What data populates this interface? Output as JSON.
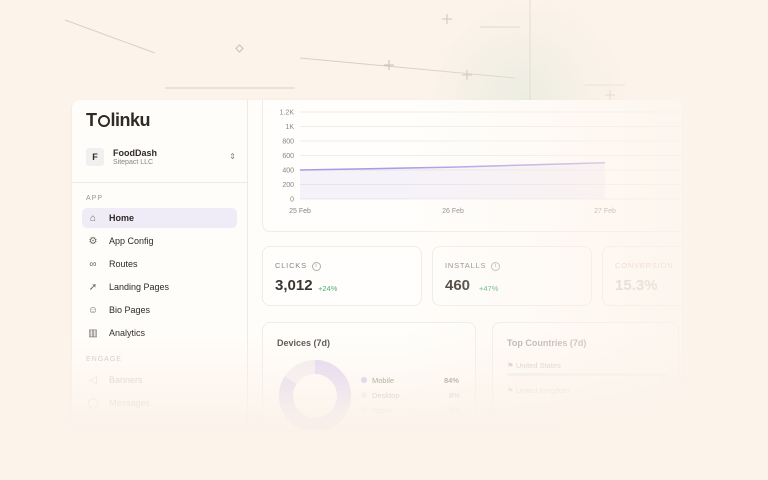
{
  "brand": {
    "name_prefix": "T",
    "name_suffix": "linku"
  },
  "org": {
    "initial": "F",
    "name": "FoodDash",
    "subtitle": "Sitepact LLC"
  },
  "sidebar": {
    "app_section": "APP",
    "items": [
      {
        "label": "Home",
        "icon": "home-icon"
      },
      {
        "label": "App Config",
        "icon": "gear-icon"
      },
      {
        "label": "Routes",
        "icon": "link-icon"
      },
      {
        "label": "Landing Pages",
        "icon": "rocket-icon"
      },
      {
        "label": "Bio Pages",
        "icon": "user-icon"
      },
      {
        "label": "Analytics",
        "icon": "bar-chart-icon"
      }
    ],
    "engage_section": "ENGAGE",
    "engage_items": [
      {
        "label": "Banners",
        "icon": "megaphone-icon"
      },
      {
        "label": "Messages",
        "icon": "message-icon"
      }
    ]
  },
  "chart_data": {
    "type": "line",
    "y_ticks": [
      "1.2K",
      "1K",
      "800",
      "600",
      "400",
      "200",
      "0"
    ],
    "x_ticks": [
      "25 Feb",
      "26 Feb",
      "27 Feb"
    ],
    "x": [
      "25 Feb",
      "26 Feb",
      "27 Feb"
    ],
    "series": [
      {
        "values": [
          400,
          440,
          500
        ]
      }
    ],
    "ylim": [
      0,
      1200
    ],
    "color": "#a99be6"
  },
  "stats": [
    {
      "label": "CLICKS",
      "value": "3,012",
      "delta": "+24%"
    },
    {
      "label": "INSTALLS",
      "value": "460",
      "delta": "+47%"
    },
    {
      "label": "CONVERSION",
      "value": "15.3%"
    }
  ],
  "devices": {
    "title": "Devices (7d)",
    "rows": [
      {
        "label": "Mobile",
        "value": "84%",
        "share": 0.84
      },
      {
        "label": "Desktop",
        "value": "8%",
        "share": 0.08
      },
      {
        "label": "Tablet",
        "value": "8%",
        "share": 0.08
      }
    ]
  },
  "countries": {
    "title": "Top Countries (7d)",
    "rows": [
      {
        "label": "United States"
      },
      {
        "label": "United Kingdom"
      }
    ]
  }
}
